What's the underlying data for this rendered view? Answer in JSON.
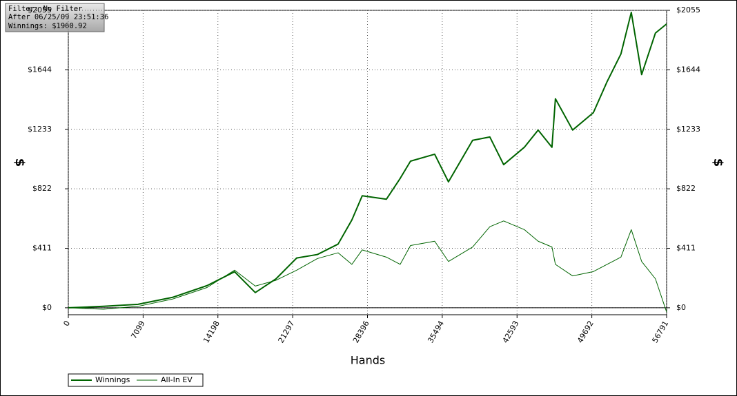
{
  "chart_data": {
    "type": "line",
    "info": [
      "Filter: No Filter",
      "After 06/25/09 23:51:36",
      "Winnings: $1960.92"
    ],
    "xlabel": "Hands",
    "ylabel": "$",
    "x": [
      0,
      3340,
      6614,
      9889,
      13163,
      15783,
      17747,
      19712,
      21677,
      23641,
      25606,
      26916,
      27898,
      30190,
      31500,
      32482,
      34774,
      36084,
      38376,
      40013,
      41323,
      43287,
      44597,
      45907,
      46235,
      47872,
      49836,
      51146,
      52456,
      53438,
      54421,
      55730,
      56791
    ],
    "series": [
      {
        "name": "Winnings",
        "color": "#006400",
        "width": 2,
        "values": [
          0,
          10,
          24,
          72,
          153,
          249,
          105,
          200,
          344,
          368,
          440,
          607,
          774,
          750,
          894,
          1013,
          1061,
          870,
          1157,
          1180,
          989,
          1109,
          1228,
          1109,
          1444,
          1228,
          1348,
          1563,
          1754,
          2041,
          1611,
          1898,
          1960.92
        ]
      },
      {
        "name": "All-In EV",
        "color": "#006400",
        "width": 1,
        "values": [
          0,
          -10,
          10,
          60,
          140,
          260,
          150,
          190,
          260,
          340,
          380,
          300,
          400,
          350,
          300,
          430,
          460,
          320,
          420,
          560,
          600,
          540,
          460,
          420,
          300,
          220,
          250,
          300,
          350,
          540,
          320,
          200,
          -30
        ]
      }
    ],
    "xlim": [
      0,
      56791
    ],
    "xticks": [
      0,
      7099,
      14198,
      21297,
      28396,
      35494,
      42593,
      49692,
      56791
    ],
    "ylim": [
      -48,
      2055
    ],
    "yticks": [
      {
        "value": 0,
        "label": "$0"
      },
      {
        "value": 411,
        "label": "$411"
      },
      {
        "value": 822,
        "label": "$822"
      },
      {
        "value": 1233,
        "label": "$1233"
      },
      {
        "value": 1644,
        "label": "$1644"
      },
      {
        "value": 2055,
        "label": "$2055"
      }
    ],
    "grid": true
  }
}
